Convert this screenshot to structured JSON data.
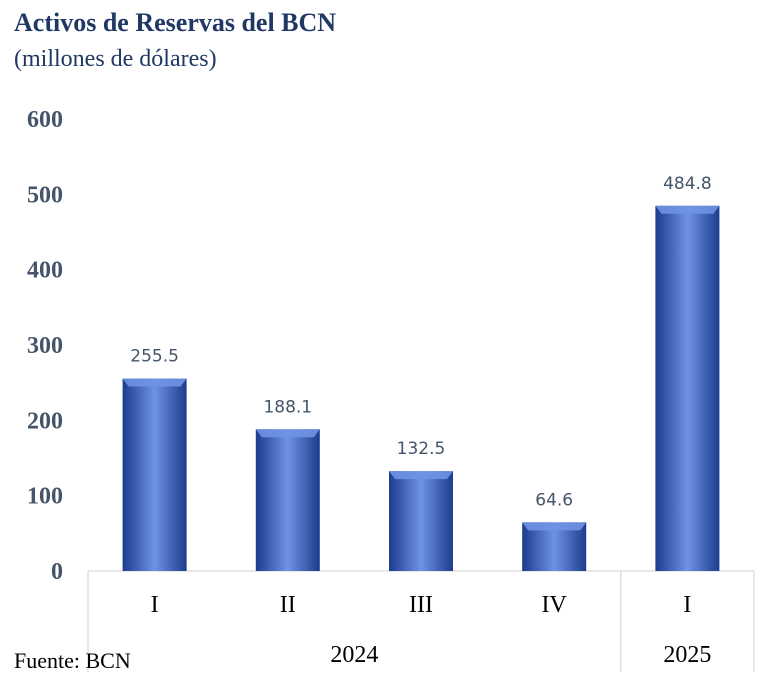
{
  "header": {
    "title": "Activos de Reservas del BCN",
    "subtitle": "(millones de dólares)"
  },
  "footer": {
    "source": "Fuente: BCN"
  },
  "colors": {
    "bar_light": "#6f93e3",
    "bar_mid": "#4169c9",
    "bar_dark": "#1c3c8c",
    "axis_text": "#44546a",
    "title": "#1f3864"
  },
  "chart_data": {
    "type": "bar",
    "categories": [
      "I",
      "II",
      "III",
      "IV",
      "I"
    ],
    "groups": [
      {
        "label": "2024",
        "span": 4
      },
      {
        "label": "2025",
        "span": 1
      }
    ],
    "values": [
      255.5,
      188.1,
      132.5,
      64.6,
      484.8
    ],
    "data_labels": [
      "255.5",
      "188.1",
      "132.5",
      "64.6",
      "484.8"
    ],
    "yticks": [
      "0",
      "100",
      "200",
      "300",
      "400",
      "500",
      "600"
    ],
    "ylim": [
      0,
      600
    ],
    "grid": false,
    "legend": "none"
  }
}
